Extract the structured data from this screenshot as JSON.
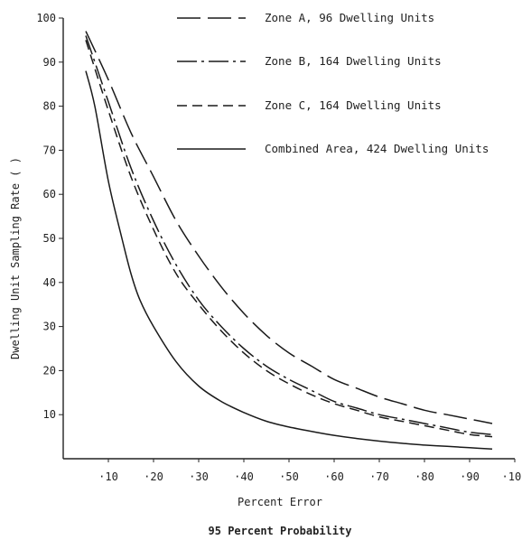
{
  "chart_data": {
    "type": "line",
    "title": "",
    "xlabel": "Percent Error",
    "ylabel": "Dwelling Unit Sampling Rate ( )",
    "caption": "95 Percent Probability",
    "xlim": [
      0,
      100
    ],
    "ylim": [
      0,
      100
    ],
    "x_ticks": [
      {
        "value": 10,
        "label": "·10"
      },
      {
        "value": 20,
        "label": "·20"
      },
      {
        "value": 30,
        "label": "·30"
      },
      {
        "value": 40,
        "label": "·40"
      },
      {
        "value": 50,
        "label": "·50"
      },
      {
        "value": 60,
        "label": "·60"
      },
      {
        "value": 70,
        "label": "·70"
      },
      {
        "value": 80,
        "label": "·80"
      },
      {
        "value": 90,
        "label": "·90"
      },
      {
        "value": 100,
        "label": "·100"
      }
    ],
    "y_ticks": [
      {
        "value": 10,
        "label": "10"
      },
      {
        "value": 20,
        "label": "20"
      },
      {
        "value": 30,
        "label": "30"
      },
      {
        "value": 40,
        "label": "40"
      },
      {
        "value": 50,
        "label": "50"
      },
      {
        "value": 60,
        "label": "60"
      },
      {
        "value": 70,
        "label": "70"
      },
      {
        "value": 80,
        "label": "80"
      },
      {
        "value": 90,
        "label": "90"
      },
      {
        "value": 100,
        "label": "100"
      }
    ],
    "grid": false,
    "legend_position": "top-center",
    "series": [
      {
        "name": "Zone A, 96 Dwelling Units",
        "dash": "long-dash",
        "x": [
          5,
          10,
          15,
          20,
          25,
          30,
          35,
          40,
          45,
          50,
          55,
          60,
          65,
          70,
          75,
          80,
          85,
          90,
          95
        ],
        "y": [
          97,
          86,
          74,
          64,
          54,
          46,
          39,
          33,
          28,
          24,
          21,
          18,
          16,
          14,
          12.5,
          11,
          10,
          9,
          8
        ]
      },
      {
        "name": "Zone B, 164 Dwelling Units",
        "dash": "dash-dot",
        "x": [
          5,
          10,
          15,
          20,
          25,
          30,
          35,
          40,
          45,
          50,
          55,
          60,
          65,
          70,
          75,
          80,
          85,
          90,
          95
        ],
        "y": [
          96,
          81,
          66,
          54,
          44,
          36,
          30,
          25,
          21,
          18,
          15.5,
          13,
          11.5,
          10,
          9,
          8,
          7,
          6,
          5.5
        ]
      },
      {
        "name": "Zone C, 164 Dwelling Units",
        "dash": "dash",
        "x": [
          5,
          10,
          15,
          20,
          25,
          30,
          35,
          40,
          45,
          50,
          55,
          60,
          65,
          70,
          75,
          80,
          85,
          90,
          95
        ],
        "y": [
          95,
          79,
          64,
          52,
          42,
          35,
          29,
          24,
          20,
          17,
          14.5,
          12.5,
          11,
          9.5,
          8.5,
          7.5,
          6.5,
          5.5,
          5
        ]
      },
      {
        "name": "Combined Area, 424 Dwelling Units",
        "dash": "solid",
        "x": [
          5,
          7,
          10,
          13,
          15,
          17,
          20,
          25,
          30,
          35,
          40,
          45,
          50,
          55,
          60,
          65,
          70,
          75,
          80,
          85,
          90,
          95
        ],
        "y": [
          88,
          80,
          63,
          50,
          42,
          36,
          30,
          22,
          16.5,
          13,
          10.5,
          8.5,
          7.2,
          6.2,
          5.3,
          4.6,
          4,
          3.5,
          3.1,
          2.8,
          2.5,
          2.2
        ]
      }
    ]
  }
}
